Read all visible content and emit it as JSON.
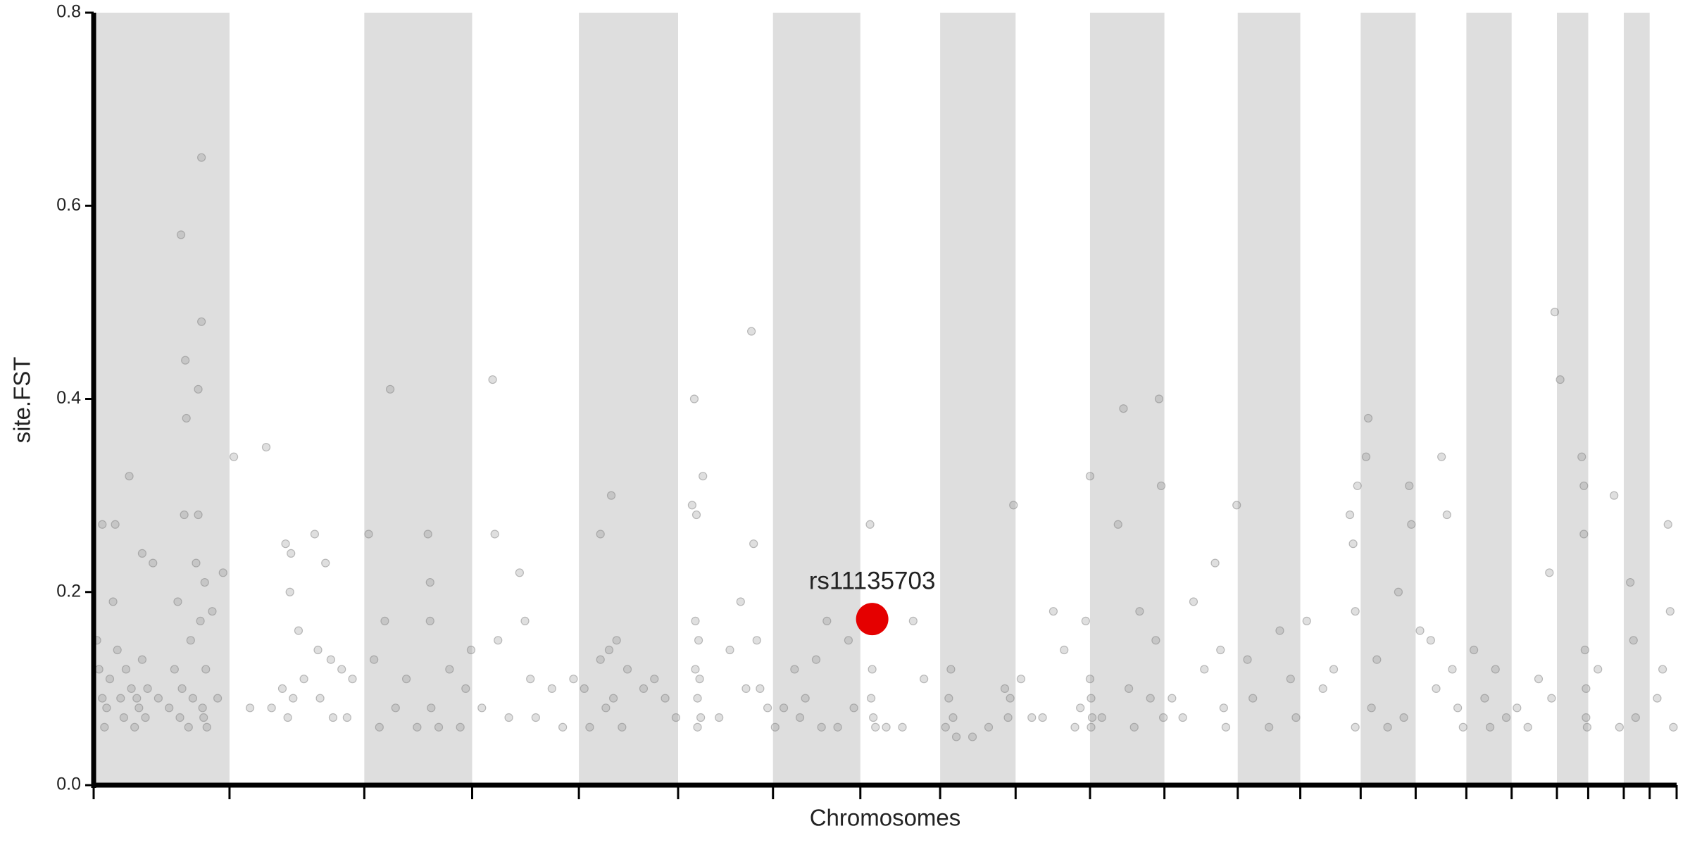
{
  "chart_data": {
    "type": "scatter",
    "xlabel": "Chromosomes",
    "ylabel": "site.FST",
    "xlim": [
      0,
      1468
    ],
    "xticks": [
      0,
      126,
      251,
      351,
      450,
      542,
      630,
      711,
      785,
      855,
      924,
      993,
      1061,
      1119,
      1175,
      1226,
      1273,
      1315,
      1357,
      1386,
      1419,
      1443,
      1468
    ],
    "shade_alternate": true,
    "ylim": [
      0,
      0.8
    ],
    "yticks": [
      {
        "value": 0,
        "label": "0.0"
      },
      0.2,
      0.4,
      0.6,
      0.8
    ],
    "series": [
      {
        "color": "#808080",
        "opacity": 0.25,
        "x": [
          3,
          5,
          8,
          8,
          10,
          12,
          15,
          18,
          20,
          22,
          25,
          28,
          30,
          33,
          35,
          38,
          40,
          42,
          45,
          45,
          48,
          50,
          55,
          60,
          70,
          75,
          78,
          80,
          81,
          82,
          84,
          85,
          86,
          88,
          90,
          92,
          95,
          97,
          97,
          99,
          100,
          100,
          101,
          102,
          103,
          104,
          105,
          110,
          115,
          120,
          130,
          145,
          160,
          165,
          175,
          178,
          180,
          182,
          183,
          185,
          190,
          195,
          205,
          208,
          210,
          215,
          220,
          222,
          230,
          235,
          240,
          255,
          260,
          265,
          270,
          275,
          280,
          290,
          300,
          310,
          312,
          312,
          313,
          320,
          330,
          340,
          345,
          350,
          360,
          370,
          372,
          375,
          385,
          395,
          400,
          405,
          410,
          425,
          435,
          445,
          455,
          460,
          470,
          470,
          475,
          478,
          480,
          482,
          485,
          490,
          495,
          510,
          520,
          530,
          540,
          555,
          557,
          558,
          558,
          559,
          560,
          560,
          561,
          562,
          563,
          565,
          580,
          590,
          600,
          605,
          610,
          612,
          615,
          618,
          625,
          632,
          640,
          650,
          655,
          660,
          670,
          675,
          680,
          690,
          700,
          705,
          720,
          721,
          722,
          723,
          725,
          735,
          750,
          760,
          770,
          790,
          793,
          795,
          797,
          800,
          815,
          830,
          845,
          848,
          850,
          853,
          860,
          870,
          880,
          890,
          900,
          910,
          915,
          920,
          924,
          924,
          925,
          925,
          926,
          935,
          950,
          955,
          960,
          965,
          970,
          980,
          985,
          988,
          990,
          992,
          1000,
          1010,
          1020,
          1030,
          1040,
          1045,
          1048,
          1050,
          1060,
          1070,
          1075,
          1090,
          1100,
          1110,
          1115,
          1125,
          1140,
          1150,
          1165,
          1168,
          1170,
          1170,
          1172,
          1180,
          1182,
          1185,
          1190,
          1200,
          1210,
          1215,
          1220,
          1222,
          1230,
          1240,
          1245,
          1250,
          1255,
          1260,
          1265,
          1270,
          1280,
          1290,
          1295,
          1300,
          1310,
          1320,
          1330,
          1340,
          1350,
          1352,
          1355,
          1360,
          1380,
          1382,
          1382,
          1383,
          1384,
          1384,
          1385,
          1395,
          1410,
          1415,
          1425,
          1428,
          1430,
          1450,
          1455,
          1460,
          1462,
          1465
        ],
        "values": [
          0.15,
          0.12,
          0.27,
          0.09,
          0.06,
          0.08,
          0.11,
          0.19,
          0.27,
          0.14,
          0.09,
          0.07,
          0.12,
          0.32,
          0.1,
          0.06,
          0.09,
          0.08,
          0.13,
          0.24,
          0.07,
          0.1,
          0.23,
          0.09,
          0.08,
          0.12,
          0.19,
          0.07,
          0.57,
          0.1,
          0.28,
          0.44,
          0.38,
          0.06,
          0.15,
          0.09,
          0.23,
          0.41,
          0.28,
          0.17,
          0.65,
          0.48,
          0.08,
          0.07,
          0.21,
          0.12,
          0.06,
          0.18,
          0.09,
          0.22,
          0.34,
          0.08,
          0.35,
          0.08,
          0.1,
          0.25,
          0.07,
          0.2,
          0.24,
          0.09,
          0.16,
          0.11,
          0.26,
          0.14,
          0.09,
          0.23,
          0.13,
          0.07,
          0.12,
          0.07,
          0.11,
          0.26,
          0.13,
          0.06,
          0.17,
          0.41,
          0.08,
          0.11,
          0.06,
          0.26,
          0.17,
          0.21,
          0.08,
          0.06,
          0.12,
          0.06,
          0.1,
          0.14,
          0.08,
          0.42,
          0.26,
          0.15,
          0.07,
          0.22,
          0.17,
          0.11,
          0.07,
          0.1,
          0.06,
          0.11,
          0.1,
          0.06,
          0.26,
          0.13,
          0.08,
          0.14,
          0.3,
          0.09,
          0.15,
          0.06,
          0.12,
          0.1,
          0.11,
          0.09,
          0.07,
          0.29,
          0.4,
          0.17,
          0.12,
          0.28,
          0.09,
          0.06,
          0.15,
          0.11,
          0.07,
          0.32,
          0.07,
          0.14,
          0.19,
          0.1,
          0.47,
          0.25,
          0.15,
          0.1,
          0.08,
          0.06,
          0.08,
          0.12,
          0.07,
          0.09,
          0.13,
          0.06,
          0.17,
          0.06,
          0.15,
          0.08,
          0.27,
          0.09,
          0.12,
          0.07,
          0.06,
          0.06,
          0.06,
          0.17,
          0.11,
          0.06,
          0.09,
          0.12,
          0.07,
          0.05,
          0.05,
          0.06,
          0.1,
          0.07,
          0.09,
          0.29,
          0.11,
          0.07,
          0.07,
          0.18,
          0.14,
          0.06,
          0.08,
          0.17,
          0.32,
          0.11,
          0.06,
          0.09,
          0.07,
          0.07,
          0.27,
          0.39,
          0.1,
          0.06,
          0.18,
          0.09,
          0.15,
          0.4,
          0.31,
          0.07,
          0.09,
          0.07,
          0.19,
          0.12,
          0.23,
          0.14,
          0.08,
          0.06,
          0.29,
          0.13,
          0.09,
          0.06,
          0.16,
          0.11,
          0.07,
          0.17,
          0.1,
          0.12,
          0.28,
          0.25,
          0.18,
          0.06,
          0.31,
          0.34,
          0.38,
          0.08,
          0.13,
          0.06,
          0.2,
          0.07,
          0.31,
          0.27,
          0.16,
          0.15,
          0.1,
          0.34,
          0.28,
          0.12,
          0.08,
          0.06,
          0.14,
          0.09,
          0.06,
          0.12,
          0.07,
          0.08,
          0.06,
          0.11,
          0.22,
          0.09,
          0.49,
          0.42,
          0.34,
          0.31,
          0.26,
          0.14,
          0.1,
          0.07,
          0.06,
          0.12,
          0.3,
          0.06,
          0.21,
          0.15,
          0.07,
          0.09,
          0.12,
          0.27,
          0.18,
          0.06
        ]
      }
    ],
    "annotations": [
      {
        "text": "rs11135703",
        "x": 722,
        "y": 0.172,
        "color": "#e50000"
      }
    ]
  }
}
